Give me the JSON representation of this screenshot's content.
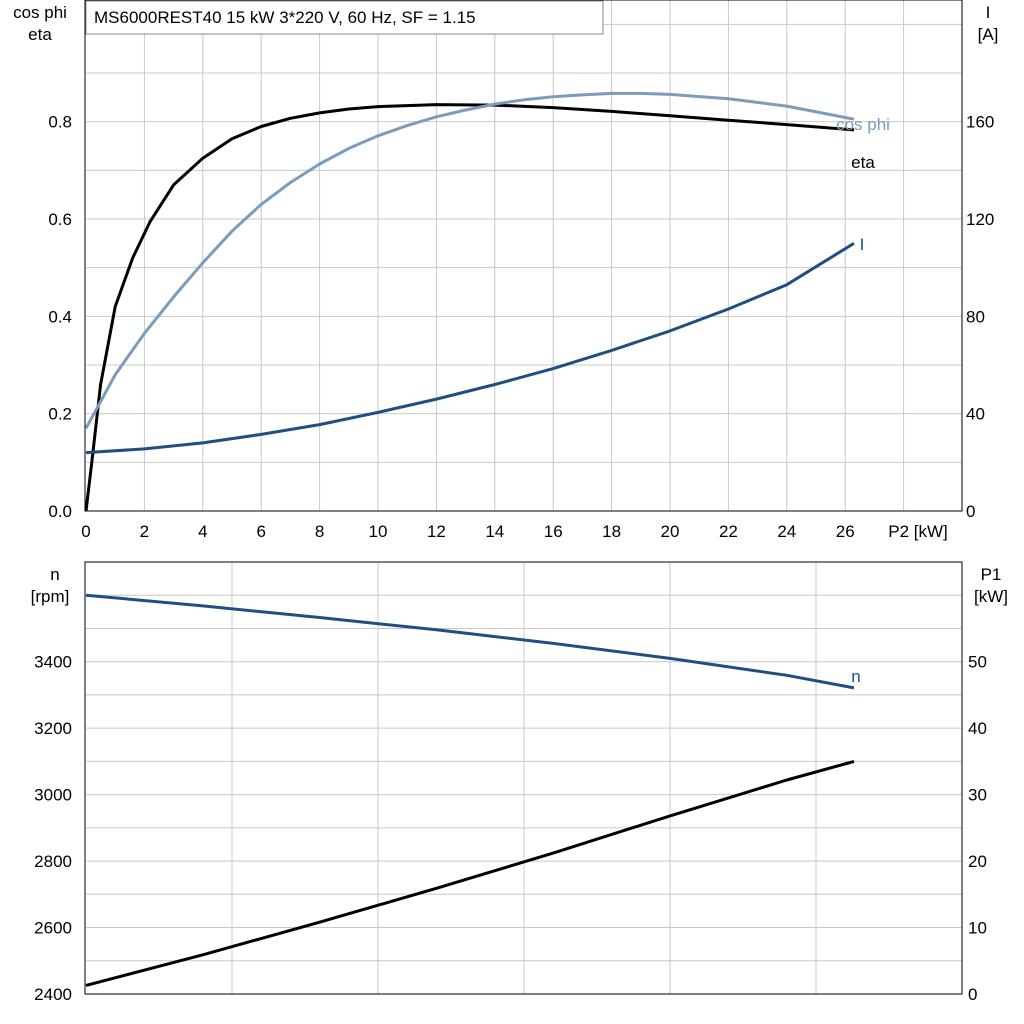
{
  "title": "MS6000REST40   15 kW   3*220 V, 60 Hz, SF = 1.15",
  "colors": {
    "eta": "#000000",
    "cos_phi": "#7b9cbc",
    "current": "#1f4f82",
    "speed": "#1f4f82",
    "p1": "#000000",
    "grid": "#c8c8c8"
  },
  "chart_data": [
    {
      "type": "line",
      "left_axis_title": [
        "cos phi",
        "eta"
      ],
      "right_axis_title": [
        "I",
        "[A]"
      ],
      "xlabel": "P2 [kW]",
      "xlim": [
        0,
        30
      ],
      "ylim_left": [
        0,
        1.05
      ],
      "ylim_right": [
        0,
        210
      ],
      "x_ticks": [
        0,
        2,
        4,
        6,
        8,
        10,
        12,
        14,
        16,
        18,
        20,
        22,
        24,
        26
      ],
      "left_ticks": [
        0.0,
        0.2,
        0.4,
        0.6,
        0.8
      ],
      "right_ticks": [
        0,
        40,
        80,
        120,
        160
      ],
      "grid": true,
      "series": [
        {
          "name": "eta",
          "axis": "left",
          "color_key": "eta",
          "x": [
            0,
            0.2,
            0.5,
            1,
            1.6,
            2.2,
            3,
            4,
            5,
            6,
            7,
            8,
            9,
            10,
            12,
            14,
            16,
            18,
            20,
            22,
            24,
            26.3
          ],
          "y": [
            0,
            0.1,
            0.26,
            0.42,
            0.52,
            0.595,
            0.67,
            0.725,
            0.765,
            0.79,
            0.807,
            0.818,
            0.826,
            0.831,
            0.835,
            0.834,
            0.829,
            0.821,
            0.812,
            0.803,
            0.794,
            0.783
          ]
        },
        {
          "name": "cos phi",
          "axis": "left",
          "color_key": "cos_phi",
          "x": [
            0,
            1,
            2,
            3,
            4,
            5,
            6,
            7,
            8,
            9,
            10,
            11,
            12,
            13,
            14,
            15,
            16,
            17,
            18,
            19,
            20,
            22,
            24,
            26.3
          ],
          "y": [
            0.17,
            0.28,
            0.365,
            0.44,
            0.51,
            0.575,
            0.63,
            0.675,
            0.713,
            0.745,
            0.771,
            0.792,
            0.81,
            0.824,
            0.836,
            0.845,
            0.851,
            0.855,
            0.858,
            0.858,
            0.856,
            0.847,
            0.832,
            0.805
          ]
        },
        {
          "name": "I",
          "axis": "right",
          "color_key": "current",
          "x": [
            0,
            2,
            4,
            6,
            8,
            10,
            12,
            14,
            16,
            18,
            20,
            22,
            24,
            26.3
          ],
          "y": [
            24,
            25.5,
            28,
            31.5,
            35.5,
            40.5,
            46,
            52,
            58.5,
            66,
            74,
            83,
            93,
            110
          ]
        }
      ]
    },
    {
      "type": "line",
      "left_axis_title": [
        "n",
        "[rpm]"
      ],
      "right_axis_title": [
        "P1",
        "[kW]"
      ],
      "xlim": [
        0,
        30
      ],
      "ylim_left": [
        2400,
        3700
      ],
      "ylim_right": [
        0,
        65
      ],
      "left_ticks": [
        2400,
        2600,
        2800,
        3000,
        3200,
        3400
      ],
      "right_ticks": [
        0,
        10,
        20,
        30,
        40,
        50
      ],
      "grid": true,
      "series": [
        {
          "name": "n",
          "axis": "left",
          "color_key": "speed",
          "x": [
            0,
            4,
            8,
            12,
            16,
            20,
            24,
            26.3
          ],
          "y": [
            3600,
            3568,
            3533,
            3496,
            3455,
            3410,
            3359,
            3321
          ]
        },
        {
          "name": "",
          "axis": "right",
          "color_key": "p1",
          "x": [
            0,
            4,
            8,
            12,
            16,
            20,
            24,
            26.3
          ],
          "y": [
            1.3,
            5.9,
            10.8,
            15.9,
            21.2,
            26.8,
            32.2,
            35.0
          ]
        }
      ]
    }
  ]
}
